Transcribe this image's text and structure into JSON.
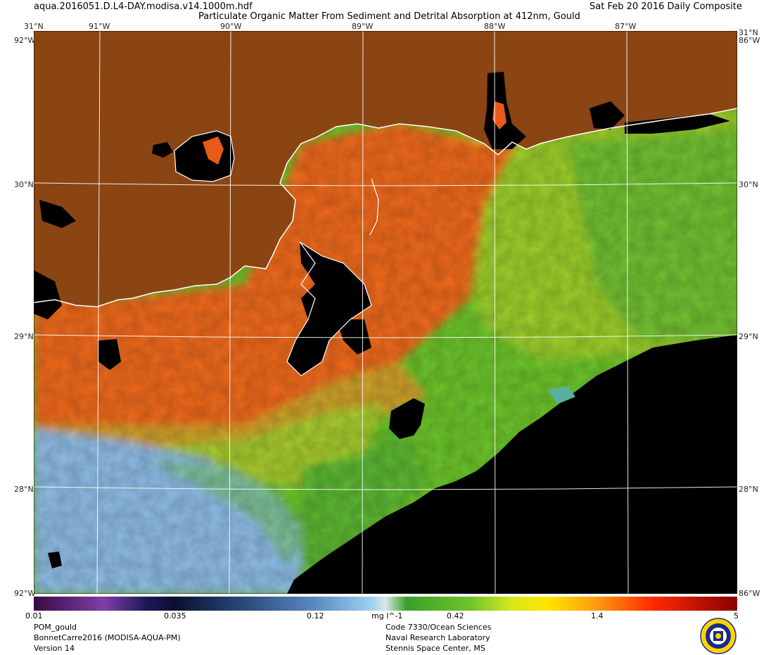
{
  "header": {
    "filename": "aqua.2016051.D.L4-DAY.modisa.v14.1000m.hdf",
    "title": "Particulate Organic Matter From Sediment and Detrital Absorption at 412nm, Gould",
    "date": "Sat Feb 20 2016 Daily Composite"
  },
  "map": {
    "longitude_labels": [
      "91°W",
      "90°W",
      "89°W",
      "88°W",
      "87°W"
    ],
    "latitude_labels": [
      "31°N",
      "30°N",
      "29°N",
      "28°N"
    ],
    "corner_top_left": "31°N",
    "corner_top_right": "31°N",
    "corner_top_right_lon": "86°W",
    "corner_top_left_lon": "92°W",
    "corner_bottom_left": "92°W",
    "corner_bottom_right": "86°W",
    "colors": {
      "land": "#8b4513",
      "no_data": "#000000",
      "coastline": "#ffffff",
      "graticule": "#ffffff"
    }
  },
  "colorbar": {
    "ticks": [
      "0.01",
      "0.035",
      "0.12",
      "mg l^-1",
      "0.42",
      "1.4",
      "5"
    ],
    "units": "mg l^-1"
  },
  "footer": {
    "left": [
      "POM_gould",
      "BonnetCarre2016 (MODISA-AQUA-PM)",
      "Version 14"
    ],
    "center": [
      "Code 7330/Ocean Sciences",
      "Naval Research Laboratory",
      "Stennis Space Center, MS"
    ]
  }
}
